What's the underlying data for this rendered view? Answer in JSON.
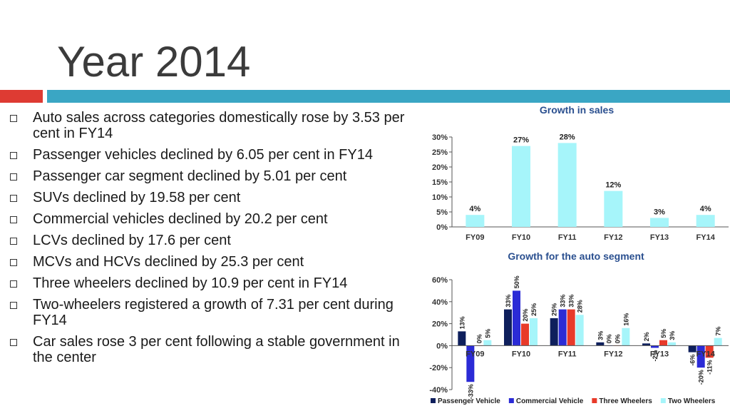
{
  "slide": {
    "title": "Year 2014",
    "bullets": [
      "Auto sales across categories domestically rose by 3.53 per cent in FY14",
      "Passenger vehicles declined by 6.05 per cent in FY14",
      "Passenger car segment declined by 5.01 per cent",
      "SUVs declined by 19.58 per cent",
      "Commercial vehicles declined by 20.2 per cent",
      "LCVs declined by 17.6 per cent",
      "MCVs and HCVs declined by 25.3 per cent",
      "Three wheelers declined by 10.9 per cent in FY14",
      "Two-wheelers registered a growth of 7.31 per cent during FY14",
      "Car sales rose 3 per cent following a stable government in the center"
    ]
  },
  "colors": {
    "title": "#3b3b3b",
    "accent_red": "#de3b33",
    "accent_teal": "#3aa6c4",
    "chart_title": "#2a4f8f",
    "cyan_bar": "#a6f5fa"
  },
  "chart_data": [
    {
      "type": "bar",
      "title": "Growth in sales",
      "categories": [
        "FY09",
        "FY10",
        "FY11",
        "FY12",
        "FY13",
        "FY14"
      ],
      "values": [
        4,
        27,
        28,
        12,
        3,
        4
      ],
      "data_labels": [
        "4%",
        "27%",
        "28%",
        "12%",
        "3%",
        "4%"
      ],
      "ylim": [
        0,
        30
      ],
      "yticks": [
        "0%",
        "5%",
        "10%",
        "15%",
        "20%",
        "25%",
        "30%"
      ],
      "color": "#a6f5fa",
      "grid": false
    },
    {
      "type": "bar",
      "title": "Growth for the auto segment",
      "categories": [
        "FY09",
        "FY10",
        "FY11",
        "FY12",
        "FY13",
        "FY14"
      ],
      "ylim": [
        -40,
        60
      ],
      "yticks": [
        "-40%",
        "-20%",
        "0%",
        "20%",
        "40%",
        "60%"
      ],
      "legend_position": "bottom",
      "grid": false,
      "series": [
        {
          "name": "Passenger Vehicle",
          "color": "#0e1f5c",
          "values": [
            13,
            33,
            25,
            3,
            2,
            -6
          ],
          "labels": [
            "13%",
            "33%",
            "25%",
            "3%",
            "2%",
            "-6%"
          ]
        },
        {
          "name": "Commercial Vehicle",
          "color": "#2b2bd6",
          "values": [
            -33,
            50,
            33,
            0,
            -2,
            -20
          ],
          "labels": [
            "-33%",
            "50%",
            "33%",
            "0%",
            "-2%",
            "-20%"
          ]
        },
        {
          "name": "Three Wheelers",
          "color": "#e83a2a",
          "values": [
            0,
            20,
            33,
            0,
            5,
            -11
          ],
          "labels": [
            "0%",
            "20%",
            "33%",
            "0%",
            "5%",
            "-11%"
          ]
        },
        {
          "name": "Two Wheelers",
          "color": "#a6f5fa",
          "values": [
            5,
            25,
            28,
            16,
            3,
            7
          ],
          "labels": [
            "5%",
            "25%",
            "28%",
            "16%",
            "3%",
            "7%"
          ]
        }
      ]
    }
  ]
}
